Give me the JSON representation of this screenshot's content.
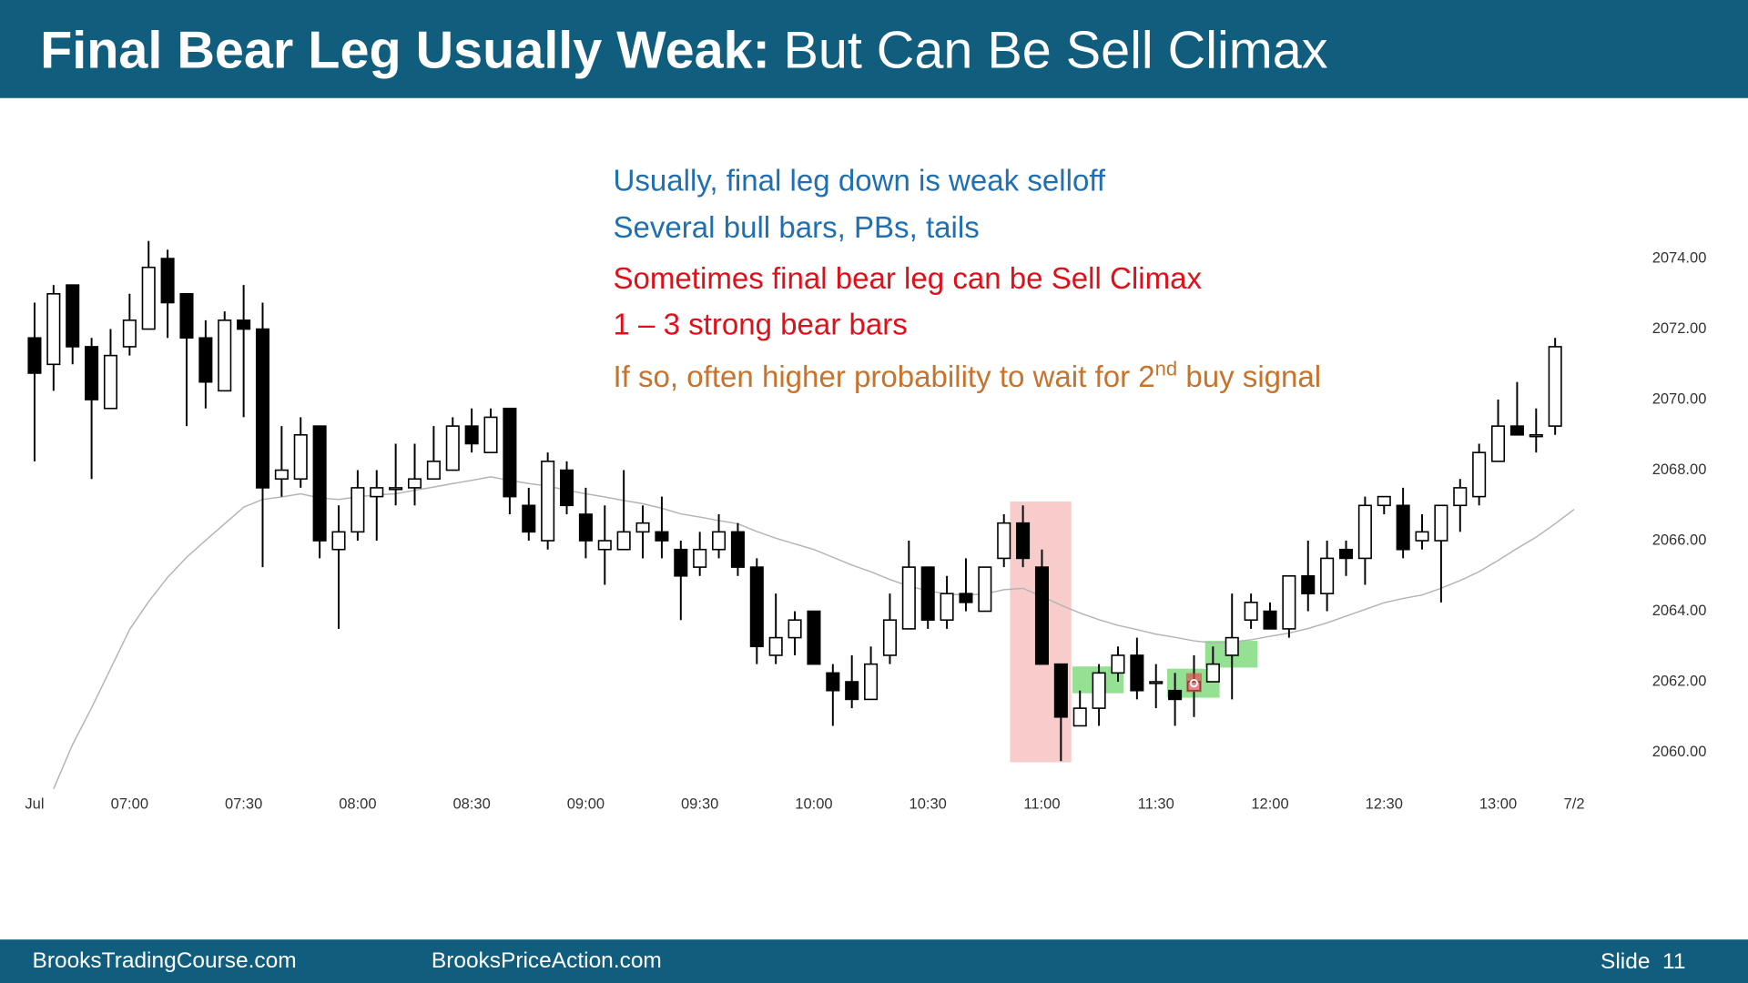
{
  "header": {
    "title_bold": "Final Bear Leg Usually Weak:",
    "title_rest": "But Can Be Sell Climax"
  },
  "chart_data": {
    "type": "candlestick",
    "annotations": [
      {
        "text": "Usually, final leg down is weak selloff",
        "color": "#1f6fb2"
      },
      {
        "text": "Several bull bars, PBs, tails",
        "color": "#1f6fb2"
      },
      {
        "text": "Sometimes final bear leg can be Sell Climax",
        "color": "#e0101a"
      },
      {
        "text": "1 – 3 strong bear bars",
        "color": "#e0101a"
      },
      {
        "text": "If so, often higher probability to wait for 2",
        "superscript": "nd",
        "text_after": " buy signal",
        "color": "#c8732c"
      }
    ],
    "categories": [
      "Jul",
      null,
      null,
      null,
      null,
      "07:00",
      null,
      null,
      null,
      null,
      null,
      "07:30",
      null,
      null,
      null,
      null,
      null,
      "08:00",
      null,
      null,
      null,
      null,
      null,
      "08:30",
      null,
      null,
      null,
      null,
      null,
      "09:00",
      null,
      null,
      null,
      null,
      null,
      "09:30",
      null,
      null,
      null,
      null,
      null,
      "10:00",
      null,
      null,
      null,
      null,
      null,
      "10:30",
      null,
      null,
      null,
      null,
      null,
      "11:00",
      null,
      null,
      null,
      null,
      null,
      "11:30",
      null,
      null,
      null,
      null,
      null,
      "12:00",
      null,
      null,
      null,
      null,
      null,
      "12:30",
      null,
      null,
      null,
      null,
      null,
      "13:00",
      null,
      null,
      null,
      "7/2"
    ],
    "open": [
      2071.75,
      2071,
      2073.25,
      2071.5,
      2069.75,
      2071.5,
      2072,
      2074,
      2073,
      2071.75,
      2070.25,
      2072.25,
      2072,
      2067.75,
      2067.75,
      2069.25,
      2065.75,
      2066.25,
      2067.25,
      2067.5,
      2067.5,
      2067.75,
      2068,
      2069.25,
      2068.5,
      2069.75,
      2067,
      2066,
      2068,
      2066.75,
      2065.75,
      2065.75,
      2066.25,
      2066.25,
      2065.75,
      2065.25,
      2065.75,
      2066.25,
      2065.25,
      2062.75,
      2063.25,
      2064,
      2062.25,
      2062,
      2061.5,
      2062.75,
      2063.5,
      2065.25,
      2063.75,
      2064.5,
      2064,
      2065.5,
      2066.5,
      2065.25,
      2062.5,
      2060.75,
      2061.25,
      2062.25,
      2062.75,
      2062,
      2061.75,
      2061.75,
      2062,
      2062.75,
      2063.75,
      2064,
      2063.5,
      2065,
      2064.5,
      2065.75,
      2065.5,
      2067,
      2067,
      2066,
      2066,
      2067,
      2067.25,
      2068.25,
      2069.25,
      2069,
      2069.25,
      null
    ],
    "high": [
      2072.75,
      2073.25,
      2073.25,
      2071.75,
      2072,
      2073,
      2074.5,
      2074.25,
      2073,
      2072.25,
      2072.5,
      2073.25,
      2072.75,
      2069.25,
      2069.5,
      2069.25,
      2067,
      2068,
      2068,
      2068.75,
      2068.75,
      2069.25,
      2069.5,
      2069.75,
      2069.75,
      2069.75,
      2067.5,
      2068.5,
      2068.25,
      2067.5,
      2067,
      2068,
      2067,
      2067.25,
      2066,
      2066.25,
      2066.75,
      2066.5,
      2065.5,
      2064.5,
      2064,
      2064,
      2062.5,
      2062.75,
      2063,
      2064.5,
      2066,
      2065.25,
      2065,
      2065.5,
      2065.25,
      2066.75,
      2067,
      2065.75,
      2062.5,
      2061.75,
      2062.5,
      2063,
      2063.25,
      2062.5,
      2062.25,
      2062.75,
      2063,
      2064.5,
      2064.5,
      2064.25,
      2065,
      2066,
      2066,
      2066,
      2067.25,
      2067.25,
      2067.5,
      2066.75,
      2067,
      2067.75,
      2068.75,
      2070,
      2070.5,
      2069.75,
      2071.75,
      null
    ],
    "low": [
      2068.25,
      2070.25,
      2071,
      2067.75,
      2069.75,
      2071.25,
      2072,
      2071.75,
      2069.25,
      2069.75,
      2070.25,
      2069.5,
      2065.25,
      2067.25,
      2067.5,
      2065.5,
      2063.5,
      2066,
      2066,
      2067,
      2067,
      2067.75,
      2068,
      2068.5,
      2068.5,
      2066.75,
      2066,
      2065.75,
      2066.75,
      2065.5,
      2064.75,
      2065.75,
      2065.5,
      2065.5,
      2063.75,
      2065,
      2065.5,
      2065,
      2062.5,
      2062.5,
      2062.75,
      2062.5,
      2060.75,
      2061.25,
      2061.5,
      2062.5,
      2063.5,
      2063.5,
      2063.5,
      2064,
      2064,
      2065.25,
      2065.25,
      2062.5,
      2059.75,
      2060.75,
      2060.75,
      2062,
      2061.5,
      2061.25,
      2060.75,
      2061,
      2062,
      2061.5,
      2063.5,
      2063.5,
      2063.25,
      2064,
      2064,
      2065,
      2064.75,
      2066.75,
      2065.5,
      2065.75,
      2064.25,
      2066.25,
      2067,
      2068.25,
      2069,
      2068.5,
      2069,
      null
    ],
    "close": [
      2070.75,
      2073,
      2071.5,
      2070,
      2071.25,
      2072.25,
      2073.75,
      2072.75,
      2071.75,
      2070.5,
      2072.25,
      2072,
      2067.5,
      2068,
      2069,
      2066,
      2066.25,
      2067.5,
      2067.5,
      2067.5,
      2067.75,
      2068.25,
      2069.25,
      2068.75,
      2069.5,
      2067.25,
      2066.25,
      2068.25,
      2067,
      2066,
      2066,
      2066.25,
      2066.5,
      2066,
      2065,
      2065.75,
      2066.25,
      2065.25,
      2063,
      2063.25,
      2063.75,
      2062.5,
      2061.75,
      2061.5,
      2062.5,
      2063.75,
      2065.25,
      2063.75,
      2064.5,
      2064.25,
      2065.25,
      2066.5,
      2065.5,
      2062.5,
      2061,
      2061.25,
      2062.25,
      2062.75,
      2061.75,
      2062,
      2061.5,
      2062,
      2062.5,
      2063.25,
      2064.25,
      2063.5,
      2065,
      2064.5,
      2065.5,
      2065.5,
      2067,
      2067.25,
      2065.75,
      2066.25,
      2067,
      2067.5,
      2068.5,
      2069.25,
      2069,
      2069,
      2071.5,
      null
    ],
    "ma": [
      null,
      2058.96,
      2060.22,
      2061.26,
      2062.37,
      2063.48,
      2064.27,
      2064.96,
      2065.53,
      2066.01,
      2066.48,
      2066.95,
      2067.17,
      2067.24,
      2067.33,
      2067.21,
      2067.17,
      2067.24,
      2067.3,
      2067.33,
      2067.43,
      2067.52,
      2067.62,
      2067.71,
      2067.81,
      2067.71,
      2067.62,
      2067.55,
      2067.43,
      2067.33,
      2067.24,
      2067.14,
      2067.05,
      2066.92,
      2066.76,
      2066.67,
      2066.57,
      2066.48,
      2066.26,
      2066.07,
      2065.91,
      2065.75,
      2065.53,
      2065.31,
      2065.12,
      2064.9,
      2064.71,
      2064.58,
      2064.49,
      2064.46,
      2064.49,
      2064.61,
      2064.65,
      2064.42,
      2064.17,
      2063.95,
      2063.76,
      2063.6,
      2063.48,
      2063.35,
      2063.26,
      2063.16,
      2063.1,
      2063.13,
      2063.19,
      2063.29,
      2063.38,
      2063.51,
      2063.67,
      2063.86,
      2064.05,
      2064.24,
      2064.36,
      2064.46,
      2064.65,
      2064.87,
      2065.12,
      2065.44,
      2065.78,
      2066.1,
      2066.48,
      2066.89,
      null
    ],
    "up_color": "#ffffff",
    "down_color": "#000000",
    "ma_color": "#b4b4b4",
    "ylim": [
      2058.9,
      2074.6
    ],
    "yticks": [
      {
        "value": 2060,
        "label": "2060.00"
      },
      {
        "value": 2062,
        "label": "2062.00"
      },
      {
        "value": 2064,
        "label": "2064.00"
      },
      {
        "value": 2066,
        "label": "2066.00"
      },
      {
        "value": 2068,
        "label": "2068.00"
      },
      {
        "value": 2070,
        "label": "2070.00"
      },
      {
        "value": 2072,
        "label": "2072.00"
      },
      {
        "value": 2074,
        "label": "2074.00"
      }
    ]
  },
  "footer": {
    "left": "BrooksTradingCourse.com",
    "center": "BrooksPriceAction.com",
    "slide": "Slide  11"
  }
}
